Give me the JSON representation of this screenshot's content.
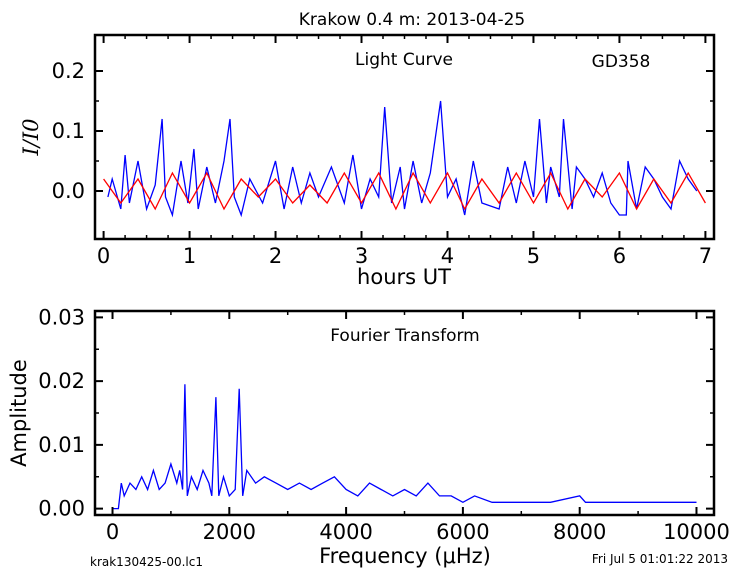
{
  "figure": {
    "title": "Krakow 0.4 m:  2013-04-25",
    "footer_left": "krak130425-00.lc1",
    "footer_right": "Fri Jul  5 01:01:22 2013"
  },
  "chart_data": [
    {
      "type": "line",
      "panel": "light-curve",
      "annotation_title": "Light Curve",
      "annotation_star": "GD358",
      "xlabel": "hours UT",
      "ylabel": "I/I0",
      "xlim": [
        -0.1,
        7.1
      ],
      "ylim": [
        -0.08,
        0.26
      ],
      "x_ticks": [
        0,
        1,
        2,
        3,
        4,
        5,
        6,
        7
      ],
      "y_ticks": [
        0.0,
        0.1,
        0.2
      ],
      "y_tick_labels": [
        "0.0",
        "0.1",
        "0.2"
      ],
      "grid": false,
      "series": [
        {
          "color": "#0000ff",
          "x": [
            0.05,
            0.1,
            0.2,
            0.25,
            0.3,
            0.4,
            0.5,
            0.6,
            0.68,
            0.72,
            0.8,
            0.9,
            0.98,
            1.05,
            1.1,
            1.2,
            1.3,
            1.4,
            1.47,
            1.52,
            1.6,
            1.7,
            1.85,
            2.0,
            2.1,
            2.2,
            2.3,
            2.4,
            2.5,
            2.65,
            2.8,
            2.9,
            3.0,
            3.1,
            3.2,
            3.27,
            3.35,
            3.45,
            3.5,
            3.6,
            3.7,
            3.8,
            3.92,
            4.0,
            4.1,
            4.2,
            4.3,
            4.4,
            4.6,
            4.7,
            4.8,
            4.9,
            5.0,
            5.07,
            5.15,
            5.2,
            5.3,
            5.35,
            5.45,
            5.5,
            5.6,
            5.7,
            5.8,
            5.9,
            6.0,
            6.08,
            6.1,
            6.2,
            6.3,
            6.4,
            6.5,
            6.6,
            6.65,
            6.7,
            6.8,
            6.9
          ],
          "y": [
            -0.01,
            0.02,
            -0.03,
            0.06,
            -0.02,
            0.05,
            -0.03,
            0.01,
            0.12,
            -0.01,
            -0.04,
            0.05,
            -0.02,
            0.07,
            -0.03,
            0.04,
            -0.02,
            0.05,
            0.12,
            -0.01,
            -0.04,
            0.02,
            -0.02,
            0.05,
            -0.03,
            0.04,
            -0.02,
            0.03,
            -0.01,
            0.04,
            -0.02,
            0.06,
            -0.03,
            0.02,
            -0.01,
            0.14,
            -0.02,
            0.04,
            -0.03,
            0.05,
            -0.02,
            0.03,
            0.15,
            -0.01,
            0.02,
            -0.04,
            0.05,
            -0.02,
            -0.03,
            0.04,
            -0.02,
            0.05,
            -0.01,
            0.12,
            -0.02,
            0.04,
            -0.01,
            0.12,
            -0.03,
            0.04,
            0.02,
            -0.01,
            0.03,
            -0.02,
            -0.04,
            -0.04,
            0.05,
            -0.03,
            0.04,
            0.02,
            -0.01,
            -0.03,
            0.01,
            0.05,
            0.02,
            0.0
          ]
        },
        {
          "color": "#ff0000",
          "x": [
            0.0,
            0.2,
            0.4,
            0.6,
            0.8,
            1.0,
            1.2,
            1.4,
            1.6,
            1.8,
            2.0,
            2.2,
            2.4,
            2.6,
            2.8,
            3.0,
            3.2,
            3.4,
            3.6,
            3.8,
            4.0,
            4.2,
            4.4,
            4.6,
            4.8,
            5.0,
            5.2,
            5.4,
            5.6,
            5.8,
            6.0,
            6.2,
            6.4,
            6.6,
            6.8,
            7.0
          ],
          "y": [
            0.02,
            -0.02,
            0.02,
            -0.03,
            0.03,
            -0.02,
            0.03,
            -0.03,
            0.02,
            -0.01,
            0.02,
            -0.02,
            0.01,
            -0.02,
            0.03,
            -0.02,
            0.03,
            -0.03,
            0.03,
            -0.02,
            0.03,
            -0.03,
            0.02,
            -0.02,
            0.03,
            -0.02,
            0.03,
            -0.03,
            0.02,
            -0.01,
            0.03,
            -0.03,
            0.02,
            -0.02,
            0.03,
            -0.02
          ]
        }
      ]
    },
    {
      "type": "line",
      "panel": "fourier-transform",
      "annotation_title": "Fourier Transform",
      "xlabel": "Frequency (μHz)",
      "ylabel": "Amplitude",
      "xlim": [
        -300,
        10300
      ],
      "ylim": [
        -0.001,
        0.031
      ],
      "x_ticks": [
        0,
        2000,
        4000,
        6000,
        8000,
        10000
      ],
      "y_ticks": [
        0.0,
        0.01,
        0.02,
        0.03
      ],
      "y_tick_labels": [
        "0.00",
        "0.01",
        "0.02",
        "0.03"
      ],
      "grid": false,
      "peaks": [
        {
          "x": 1240,
          "y": 0.0195
        },
        {
          "x": 1770,
          "y": 0.0175
        },
        {
          "x": 2170,
          "y": 0.0188
        }
      ],
      "series": [
        {
          "color": "#0000ff",
          "x": [
            0,
            100,
            150,
            200,
            300,
            400,
            500,
            600,
            700,
            800,
            900,
            1000,
            1100,
            1150,
            1200,
            1240,
            1280,
            1350,
            1450,
            1550,
            1650,
            1700,
            1770,
            1820,
            1900,
            2000,
            2100,
            2170,
            2230,
            2300,
            2450,
            2600,
            2800,
            3000,
            3200,
            3400,
            3600,
            3800,
            4000,
            4200,
            4400,
            4600,
            4800,
            5000,
            5200,
            5400,
            5600,
            5800,
            6000,
            6200,
            6500,
            7000,
            7500,
            8000,
            8100,
            8500,
            9000,
            9500,
            10000
          ],
          "y": [
            0.0,
            0.0,
            0.004,
            0.002,
            0.004,
            0.003,
            0.005,
            0.003,
            0.006,
            0.003,
            0.004,
            0.007,
            0.004,
            0.006,
            0.003,
            0.0195,
            0.002,
            0.005,
            0.003,
            0.006,
            0.004,
            0.002,
            0.0175,
            0.002,
            0.005,
            0.002,
            0.003,
            0.0188,
            0.002,
            0.006,
            0.004,
            0.005,
            0.004,
            0.003,
            0.004,
            0.003,
            0.004,
            0.005,
            0.003,
            0.002,
            0.004,
            0.003,
            0.002,
            0.003,
            0.002,
            0.004,
            0.002,
            0.002,
            0.001,
            0.002,
            0.001,
            0.001,
            0.001,
            0.002,
            0.001,
            0.001,
            0.001,
            0.001,
            0.001
          ]
        }
      ]
    }
  ]
}
